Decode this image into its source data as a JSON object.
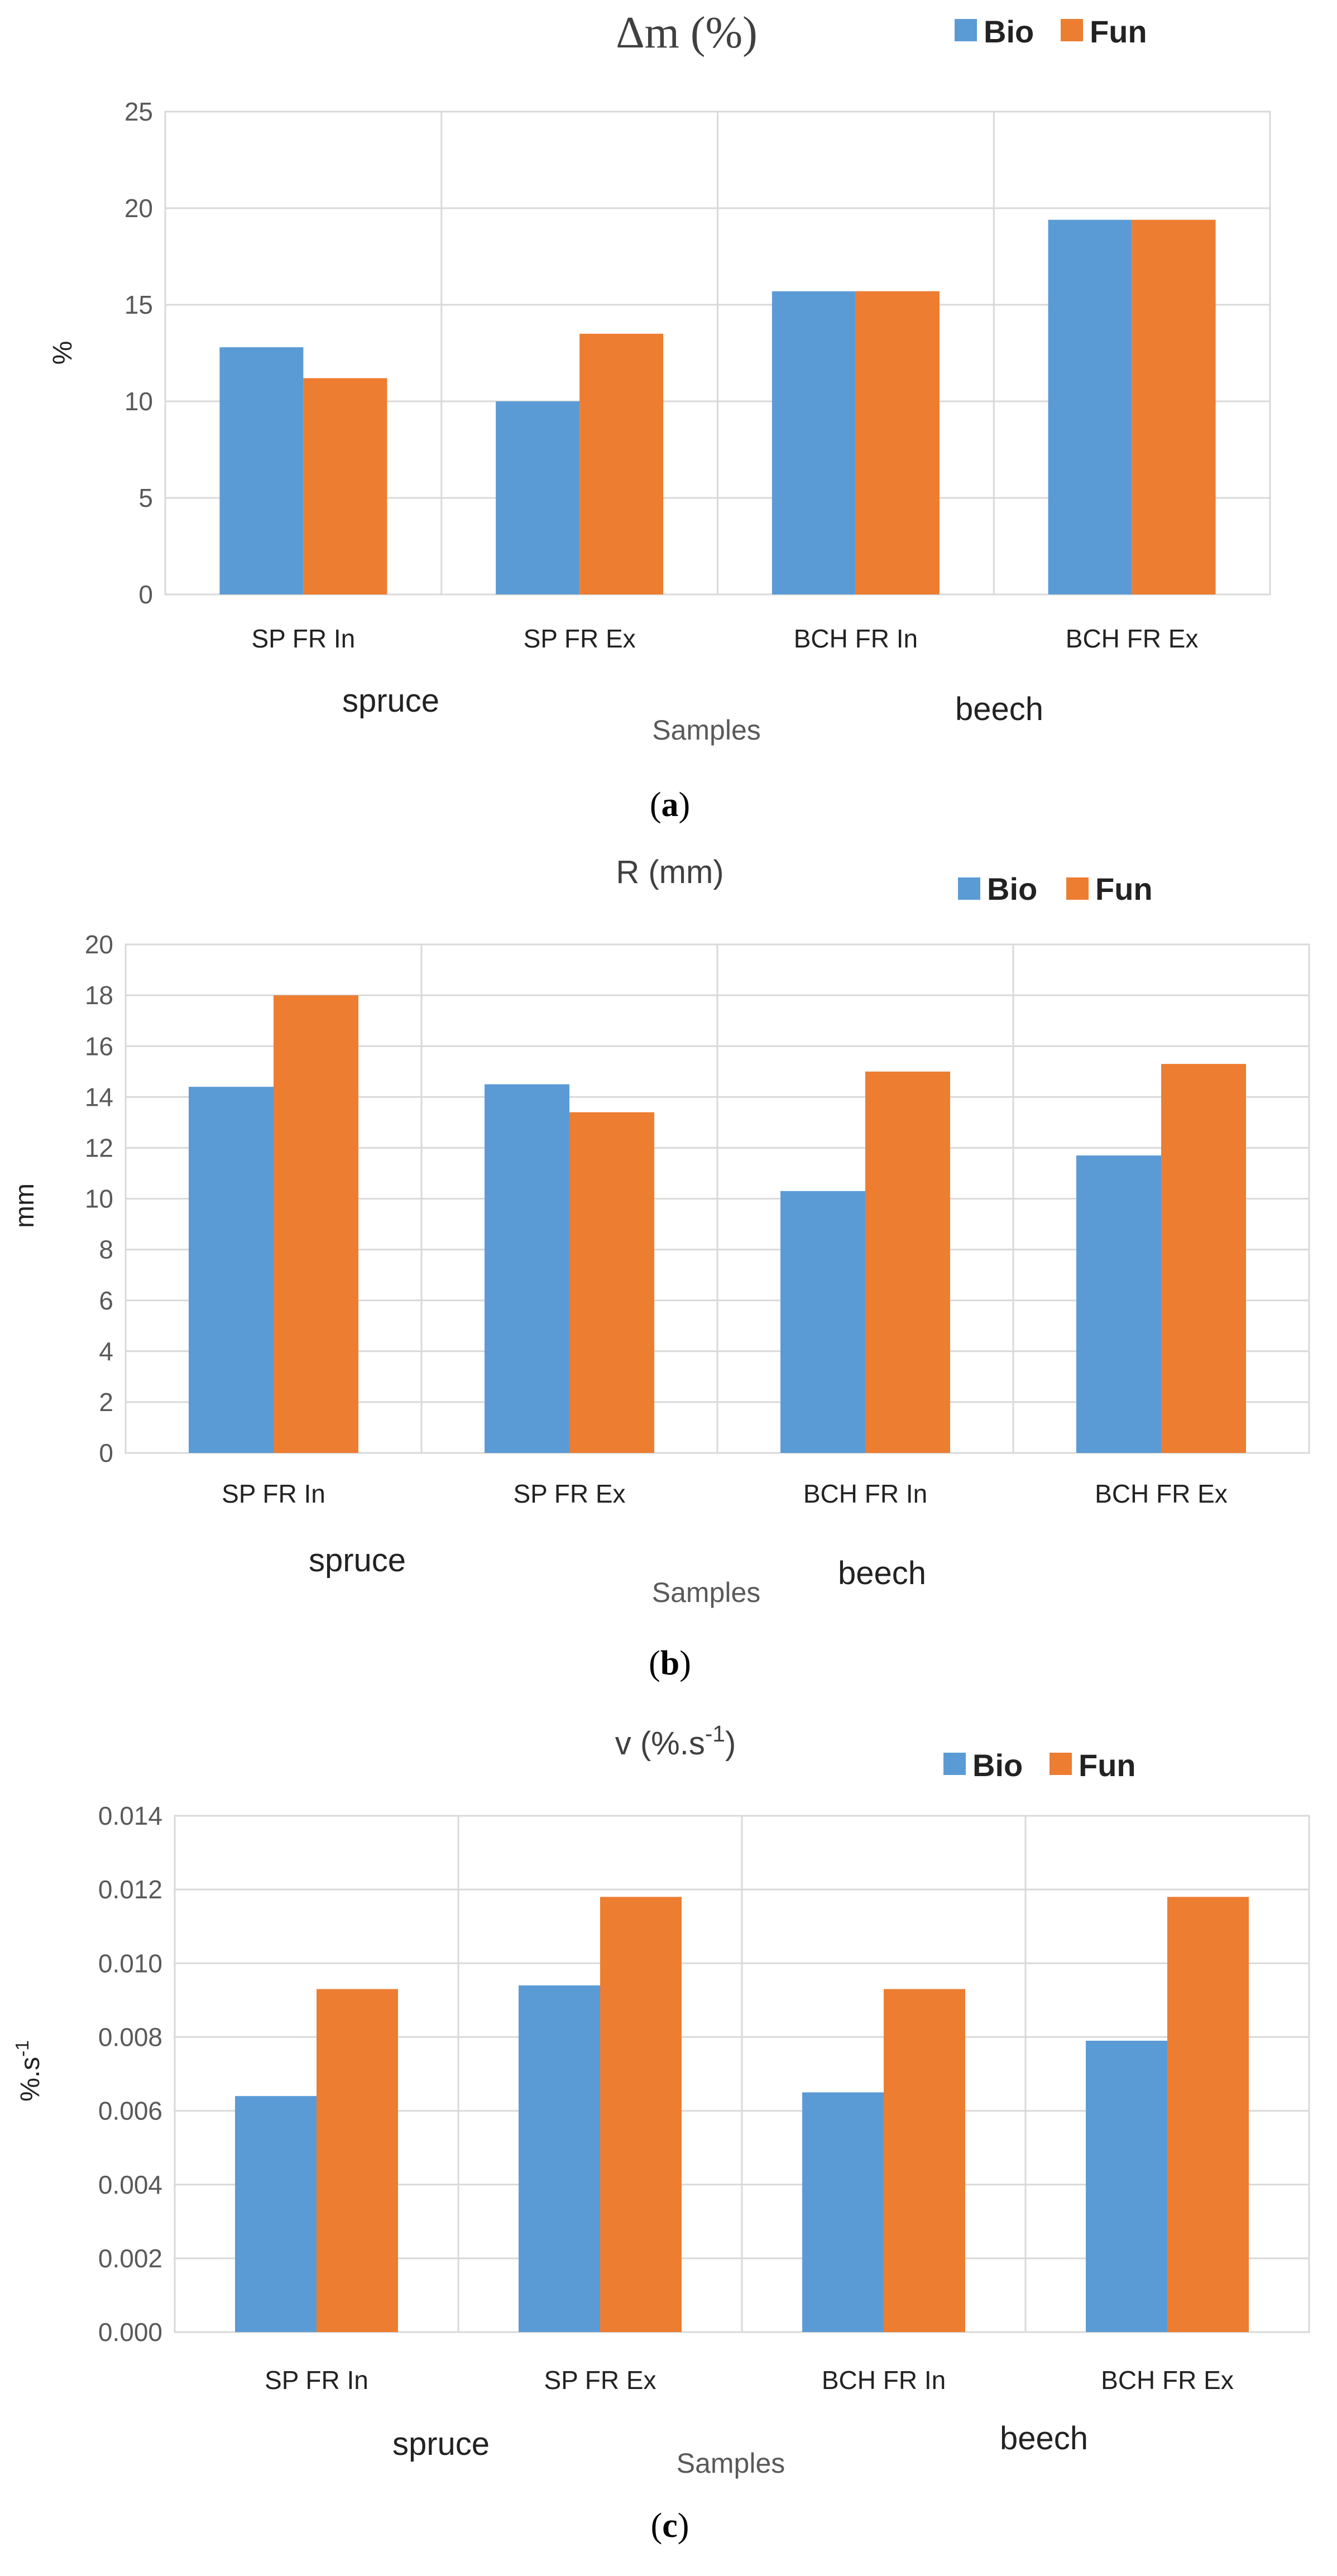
{
  "colors": {
    "bio": "#5b9bd5",
    "fun": "#ed7d31",
    "grid": "#d9d9d9",
    "axis_text": "#595959",
    "title_text": "#404040"
  },
  "figures": [
    {
      "panel_label": "a",
      "chart_data": {
        "type": "bar",
        "title": "Δm (%)",
        "categories": [
          "SP FR In",
          "SP FR Ex",
          "BCH FR In",
          "BCH FR Ex"
        ],
        "group_labels": [
          "spruce",
          "beech"
        ],
        "xlabel": "Samples",
        "ylabel": "%",
        "ylim": [
          0,
          25
        ],
        "ytick_step": 5,
        "ytick_labels": [
          "0",
          "5",
          "10",
          "15",
          "20",
          "25"
        ],
        "legend_position": "top-right",
        "series": [
          {
            "name": "Bio",
            "values": [
              12.8,
              10.0,
              15.7,
              19.4
            ]
          },
          {
            "name": "Fun",
            "values": [
              11.2,
              13.5,
              15.7,
              19.4
            ]
          }
        ]
      }
    },
    {
      "panel_label": "b",
      "chart_data": {
        "type": "bar",
        "title": "R (mm)",
        "categories": [
          "SP FR In",
          "SP FR Ex",
          "BCH FR In",
          "BCH FR Ex"
        ],
        "group_labels": [
          "spruce",
          "beech"
        ],
        "xlabel": "Samples",
        "ylabel": "mm",
        "ylim": [
          0,
          20
        ],
        "ytick_step": 2,
        "ytick_labels": [
          "0",
          "2",
          "4",
          "6",
          "8",
          "10",
          "12",
          "14",
          "16",
          "18",
          "20"
        ],
        "legend_position": "top-right",
        "series": [
          {
            "name": "Bio",
            "values": [
              14.4,
              14.5,
              10.3,
              11.7
            ]
          },
          {
            "name": "Fun",
            "values": [
              18.0,
              13.4,
              15.0,
              15.3
            ]
          }
        ]
      }
    },
    {
      "panel_label": "c",
      "chart_data": {
        "type": "bar",
        "title": "v  (%.s",
        "title_sup": "-1",
        "title_suffix": ")",
        "categories": [
          "SP FR In",
          "SP FR Ex",
          "BCH FR In",
          "BCH FR Ex"
        ],
        "group_labels": [
          "spruce",
          "beech"
        ],
        "xlabel": "Samples",
        "ylabel": "%.s",
        "ylabel_sup": "-1",
        "ylim": [
          0,
          0.014
        ],
        "ytick_step": 0.002,
        "ytick_labels": [
          "0.000",
          "0.002",
          "0.004",
          "0.006",
          "0.008",
          "0.010",
          "0.012",
          "0.014"
        ],
        "legend_position": "top-right",
        "series": [
          {
            "name": "Bio",
            "values": [
              0.0064,
              0.0094,
              0.0065,
              0.0079
            ]
          },
          {
            "name": "Fun",
            "values": [
              0.0093,
              0.0118,
              0.0093,
              0.0118
            ]
          }
        ]
      }
    }
  ]
}
